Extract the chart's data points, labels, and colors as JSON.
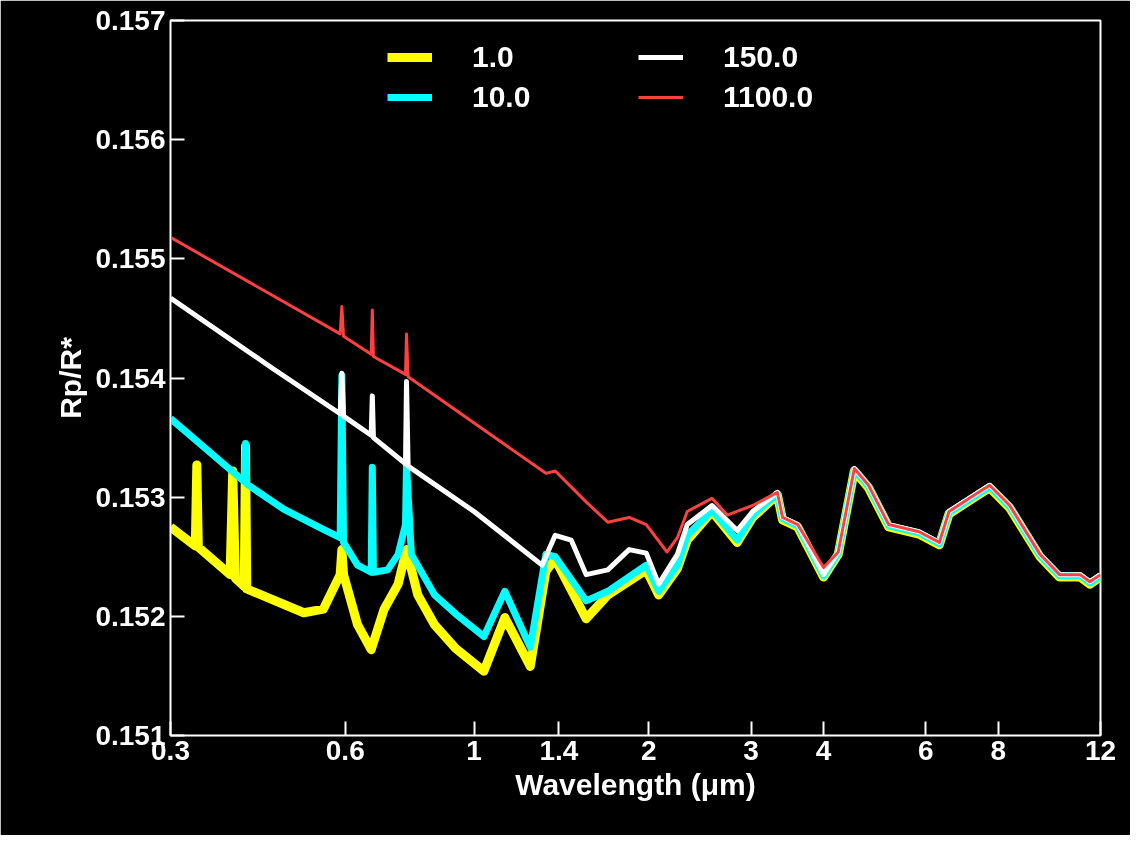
{
  "chart_data": {
    "type": "line",
    "xlabel": "Wavelength (μm)",
    "ylabel": "Rp/R*",
    "log": "x",
    "xlim": [
      0.3,
      12
    ],
    "ylim": [
      0.151,
      0.157
    ],
    "xticks": [
      0.3,
      0.6,
      1,
      1.4,
      2,
      3,
      4,
      6,
      8,
      12
    ],
    "yticks": [
      0.151,
      0.152,
      0.153,
      0.154,
      0.155,
      0.156,
      0.157
    ],
    "grid": false,
    "legend": "top",
    "line_style": "solid",
    "marker": "none",
    "series": [
      {
        "name": "1.0",
        "color": "#ffff00",
        "x": [
          0.3,
          0.331,
          0.333,
          0.335,
          0.38,
          0.384,
          0.388,
          0.402,
          0.404,
          0.406,
          0.509,
          0.55,
          0.588,
          0.592,
          0.596,
          0.63,
          0.665,
          0.7,
          0.74,
          0.765,
          0.8,
          0.855,
          0.93,
          1.04,
          1.13,
          1.25,
          1.33,
          1.38,
          1.56,
          1.7,
          1.98,
          2.08,
          2.24,
          2.33,
          2.57,
          2.84,
          3.02,
          3.33,
          3.4,
          3.61,
          4.0,
          4.24,
          4.52,
          4.78,
          5.18,
          5.84,
          6.33,
          6.58,
          7.13,
          7.73,
          8.37,
          9.44,
          10.2,
          11.07,
          11.5,
          12
        ],
        "values": [
          0.15275,
          0.15259,
          0.15327,
          0.15258,
          0.15235,
          0.15322,
          0.15232,
          0.15225,
          0.15343,
          0.15223,
          0.15203,
          0.15206,
          0.15235,
          0.15256,
          0.15235,
          0.15193,
          0.15172,
          0.15206,
          0.15227,
          0.15256,
          0.15218,
          0.15193,
          0.15173,
          0.15154,
          0.15199,
          0.15158,
          0.15238,
          0.15248,
          0.15198,
          0.15218,
          0.15239,
          0.15218,
          0.1524,
          0.15264,
          0.15288,
          0.15262,
          0.15283,
          0.15302,
          0.15281,
          0.15275,
          0.15233,
          0.15252,
          0.15322,
          0.15308,
          0.15275,
          0.15269,
          0.1526,
          0.15286,
          0.15297,
          0.15308,
          0.15291,
          0.1525,
          0.15233,
          0.15233,
          0.15227,
          0.15233
        ]
      },
      {
        "name": "10.0",
        "color": "#00ffff",
        "x": [
          0.3,
          0.36,
          0.402,
          0.404,
          0.406,
          0.47,
          0.55,
          0.588,
          0.592,
          0.596,
          0.63,
          0.665,
          0.668,
          0.671,
          0.71,
          0.74,
          0.762,
          0.765,
          0.78,
          0.855,
          0.93,
          1.04,
          1.13,
          1.25,
          1.33,
          1.38,
          1.56,
          1.7,
          1.98,
          2.08,
          2.24,
          2.33,
          2.57,
          2.84,
          3.02,
          3.33,
          3.4,
          3.61,
          4.0,
          4.24,
          4.52,
          4.78,
          5.18,
          5.84,
          6.33,
          6.58,
          7.13,
          7.73,
          8.37,
          9.44,
          10.2,
          11.07,
          11.5,
          12
        ],
        "values": [
          0.15366,
          0.15333,
          0.15313,
          0.15345,
          0.15311,
          0.1529,
          0.15273,
          0.15266,
          0.15402,
          0.15262,
          0.15243,
          0.15237,
          0.15325,
          0.15237,
          0.15239,
          0.15252,
          0.15277,
          0.15327,
          0.15252,
          0.15218,
          0.15202,
          0.15183,
          0.15221,
          0.15174,
          0.15252,
          0.1525,
          0.15213,
          0.15221,
          0.15243,
          0.15221,
          0.15243,
          0.15268,
          0.15289,
          0.15264,
          0.15285,
          0.15303,
          0.15282,
          0.15276,
          0.15234,
          0.15253,
          0.15323,
          0.15309,
          0.15276,
          0.1527,
          0.15261,
          0.15287,
          0.15298,
          0.15309,
          0.15292,
          0.15251,
          0.15234,
          0.15234,
          0.15228,
          0.15234
        ]
      },
      {
        "name": "150.0",
        "color": "#ffffff",
        "x": [
          0.3,
          0.45,
          0.588,
          0.592,
          0.596,
          0.665,
          0.668,
          0.671,
          0.762,
          0.765,
          0.77,
          1.0,
          1.31,
          1.38,
          1.47,
          1.56,
          1.7,
          1.85,
          1.98,
          2.08,
          2.24,
          2.33,
          2.57,
          2.84,
          3.02,
          3.33,
          3.4,
          3.61,
          4.0,
          4.24,
          4.52,
          4.78,
          5.18,
          5.84,
          6.33,
          6.58,
          7.13,
          7.73,
          8.37,
          9.44,
          10.2,
          11.07,
          11.5,
          12
        ],
        "values": [
          0.15467,
          0.15408,
          0.1537,
          0.15404,
          0.15368,
          0.15352,
          0.15385,
          0.1535,
          0.15328,
          0.15397,
          0.15326,
          0.15288,
          0.15243,
          0.15268,
          0.15264,
          0.15235,
          0.15239,
          0.15256,
          0.15253,
          0.15227,
          0.15252,
          0.15277,
          0.15293,
          0.15272,
          0.15288,
          0.15304,
          0.15283,
          0.15277,
          0.15235,
          0.15254,
          0.15324,
          0.1531,
          0.15277,
          0.15271,
          0.15262,
          0.15288,
          0.15299,
          0.1531,
          0.15293,
          0.15252,
          0.15235,
          0.15235,
          0.15229,
          0.15235
        ]
      },
      {
        "name": "1100.0",
        "color": "#ff4040",
        "x": [
          0.3,
          0.588,
          0.592,
          0.596,
          0.665,
          0.668,
          0.671,
          0.762,
          0.765,
          0.77,
          1.33,
          1.38,
          1.56,
          1.7,
          1.85,
          1.98,
          2.15,
          2.24,
          2.33,
          2.57,
          2.73,
          3.02,
          3.33,
          3.4,
          3.61,
          4.0,
          4.24,
          4.52,
          4.78,
          5.18,
          5.84,
          6.33,
          6.58,
          7.13,
          7.73,
          8.37,
          9.44,
          10.2,
          11.07,
          11.5,
          12
        ],
        "values": [
          0.15518,
          0.15437,
          0.1546,
          0.15435,
          0.1542,
          0.15457,
          0.15418,
          0.15403,
          0.15437,
          0.15401,
          0.1532,
          0.15322,
          0.15296,
          0.15279,
          0.15283,
          0.15277,
          0.15254,
          0.15266,
          0.15288,
          0.15299,
          0.15285,
          0.15293,
          0.15304,
          0.15283,
          0.15277,
          0.15241,
          0.15254,
          0.15324,
          0.1531,
          0.15277,
          0.15271,
          0.15262,
          0.15288,
          0.15299,
          0.1531,
          0.15293,
          0.15252,
          0.15235,
          0.15235,
          0.15229,
          0.15235
        ]
      }
    ]
  }
}
